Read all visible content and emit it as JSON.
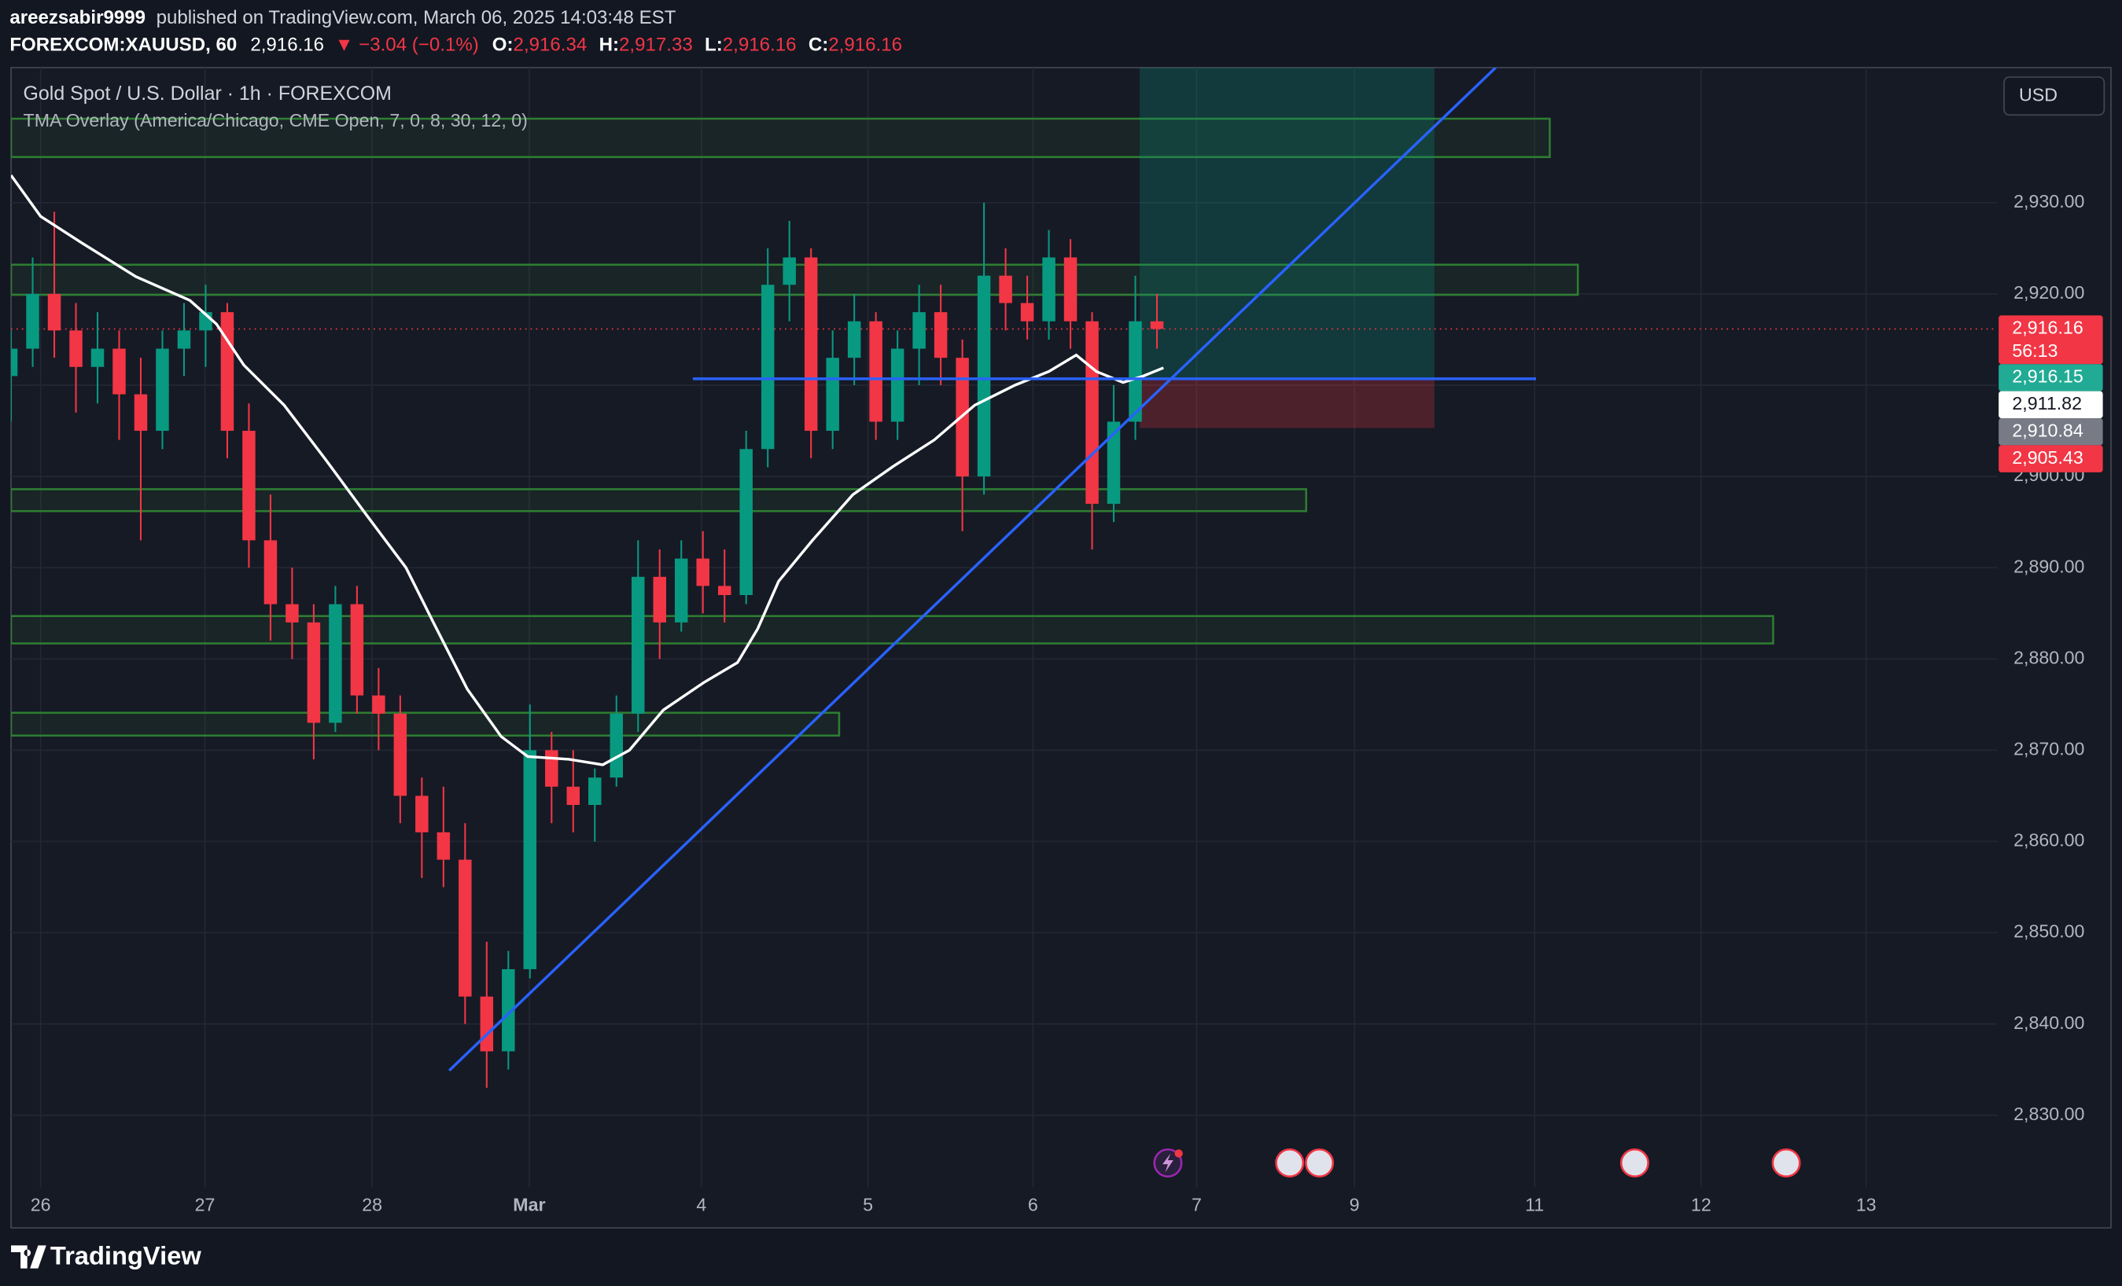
{
  "header": {
    "author": "areezsabir9999",
    "published": "published on TradingView.com, March 06, 2025 14:03:48 EST",
    "symbol": "FOREXCOM:XAUUSD, 60",
    "last": "2,916.16",
    "change": "▼ −3.04 (−0.1%)",
    "ohlc": [
      {
        "key": "O:",
        "value": "2,916.34"
      },
      {
        "key": "H:",
        "value": "2,917.33"
      },
      {
        "key": "L:",
        "value": "2,916.16"
      },
      {
        "key": "C:",
        "value": "2,916.16"
      }
    ]
  },
  "chart_data": {
    "type": "candlestick",
    "title": "Gold Spot / U.S. Dollar · 1h · FOREXCOM",
    "indicator": "TMA Overlay (America/Chicago, CME Open, 7, 0, 8, 30, 12, 0)",
    "currency": "USD",
    "up_color": "#089981",
    "down_color": "#f23645",
    "x": [
      0,
      3,
      6,
      9,
      12,
      15,
      18,
      21,
      24,
      27,
      30,
      33,
      36,
      39,
      42,
      45,
      48,
      51,
      54,
      57,
      60,
      63,
      66,
      69,
      72,
      75,
      78,
      81,
      84,
      87,
      90,
      93,
      96,
      99,
      102,
      105,
      108,
      111,
      114,
      117,
      120,
      123,
      126,
      129,
      132,
      135,
      138,
      141,
      144,
      147,
      150,
      153,
      156,
      159
    ],
    "open": [
      2911,
      2914,
      2920,
      2916,
      2912,
      2914,
      2909,
      2905,
      2914,
      2916,
      2918,
      2905,
      2893,
      2886,
      2884,
      2873,
      2886,
      2876,
      2874,
      2865,
      2861,
      2858,
      2843,
      2837,
      2846,
      2870,
      2866,
      2864,
      2867,
      2874,
      2889,
      2884,
      2891,
      2888,
      2887,
      2903,
      2921,
      2924,
      2905,
      2913,
      2917,
      2906,
      2914,
      2918,
      2913,
      2900,
      2922,
      2919,
      2917,
      2924,
      2917,
      2897,
      2906,
      2917
    ],
    "high": [
      2916,
      2924,
      2929,
      2919,
      2918,
      2916,
      2913,
      2916,
      2919,
      2921,
      2919,
      2908,
      2898,
      2890,
      2886,
      2888,
      2888,
      2879,
      2876,
      2867,
      2866,
      2862,
      2849,
      2848,
      2875,
      2872,
      2870,
      2868,
      2876,
      2893,
      2892,
      2893,
      2894,
      2892,
      2905,
      2925,
      2928,
      2925,
      2916,
      2920,
      2918,
      2916,
      2921,
      2921,
      2915,
      2930,
      2925,
      2922,
      2927,
      2926,
      2918,
      2910,
      2922,
      2920
    ],
    "low": [
      2906,
      2912,
      2913,
      2907,
      2908,
      2904,
      2893,
      2903,
      2911,
      2912,
      2902,
      2890,
      2882,
      2880,
      2869,
      2872,
      2874,
      2870,
      2862,
      2856,
      2855,
      2840,
      2833,
      2835,
      2845,
      2862,
      2861,
      2860,
      2866,
      2872,
      2880,
      2883,
      2885,
      2884,
      2886,
      2901,
      2917,
      2902,
      2903,
      2910,
      2904,
      2904,
      2910,
      2910,
      2894,
      2898,
      2916,
      2915,
      2915,
      2914,
      2892,
      2895,
      2904,
      2914
    ],
    "close": [
      2914,
      2920,
      2916,
      2912,
      2914,
      2909,
      2905,
      2914,
      2916,
      2918,
      2905,
      2893,
      2886,
      2884,
      2873,
      2886,
      2876,
      2874,
      2865,
      2861,
      2858,
      2843,
      2837,
      2846,
      2870,
      2866,
      2864,
      2867,
      2874,
      2889,
      2884,
      2891,
      2888,
      2887,
      2903,
      2921,
      2924,
      2905,
      2913,
      2917,
      2906,
      2914,
      2918,
      2913,
      2900,
      2922,
      2919,
      2917,
      2924,
      2917,
      2897,
      2906,
      2917,
      2916.16
    ],
    "xlim": [
      0,
      275.6
    ],
    "xticks": [
      {
        "value": 4.1,
        "label": "26"
      },
      {
        "value": 26.9,
        "label": "27"
      },
      {
        "value": 50.1,
        "label": "28"
      },
      {
        "value": 71.9,
        "label": "Mar"
      },
      {
        "value": 95.8,
        "label": "4"
      },
      {
        "value": 118.9,
        "label": "5"
      },
      {
        "value": 141.8,
        "label": "6"
      },
      {
        "value": 164.5,
        "label": "7"
      },
      {
        "value": 186.4,
        "label": "9"
      },
      {
        "value": 211.4,
        "label": "11"
      },
      {
        "value": 234.5,
        "label": "12"
      },
      {
        "value": 257.4,
        "label": "13"
      }
    ],
    "ylim": [
      2822.1,
      2944.8
    ],
    "yticks": [
      {
        "value": 2830,
        "label": "2,830.00"
      },
      {
        "value": 2840,
        "label": "2,840.00"
      },
      {
        "value": 2850,
        "label": "2,850.00"
      },
      {
        "value": 2860,
        "label": "2,860.00"
      },
      {
        "value": 2870,
        "label": "2,870.00"
      },
      {
        "value": 2880,
        "label": "2,880.00"
      },
      {
        "value": 2890,
        "label": "2,890.00"
      },
      {
        "value": 2900,
        "label": "2,900.00"
      },
      {
        "value": 2910,
        "label": "2,910.00"
      },
      {
        "value": 2920,
        "label": "2,920.00"
      },
      {
        "value": 2930,
        "label": "2,930.00"
      }
    ],
    "grid": true,
    "tma": {
      "color": "#ffffff",
      "x": [
        0,
        4.1,
        9.8,
        17.3,
        24.8,
        28.5,
        32.3,
        37.9,
        43.6,
        49.2,
        54.8,
        58.6,
        63.3,
        68,
        71.7,
        77.4,
        82.1,
        85.8,
        90.5,
        96.1,
        100.8,
        103.6,
        106.5,
        111.2,
        116.8,
        122.4,
        128.1,
        133.7,
        139.3,
        144,
        147.8,
        150.6,
        154.3,
        157.1,
        159.9
      ],
      "values": [
        2933,
        2928.5,
        2925.6,
        2921.9,
        2919.3,
        2916.7,
        2912.2,
        2907.8,
        2901.9,
        2895.9,
        2890,
        2884,
        2876.7,
        2871.5,
        2869.3,
        2869,
        2868.4,
        2870,
        2874.4,
        2877.4,
        2879.6,
        2883.3,
        2888.5,
        2893,
        2898,
        2901.1,
        2904,
        2907.8,
        2910,
        2911.5,
        2913.3,
        2911.5,
        2910.3,
        2911,
        2911.9
      ]
    },
    "zone_color": "#2e7d32",
    "zones": [
      {
        "x": [
          0,
          213.5
        ],
        "y": [
          2935,
          2939.2
        ]
      },
      {
        "x": [
          0,
          217.4
        ],
        "y": [
          2919.9,
          2923.2
        ]
      },
      {
        "x": [
          0,
          179.7
        ],
        "y": [
          2896.2,
          2898.6
        ]
      },
      {
        "x": [
          0,
          244.5
        ],
        "y": [
          2881.7,
          2884.7
        ]
      },
      {
        "x": [
          0,
          114.9
        ],
        "y": [
          2871.6,
          2874.1
        ]
      }
    ],
    "trendline": {
      "x": [
        60.8,
        206
      ],
      "y": [
        2834.9,
        2944.8
      ],
      "color": "#2962ff"
    },
    "level": {
      "x": [
        94.6,
        211.6
      ],
      "y": 2910.7,
      "color": "#2962ff"
    },
    "position": {
      "x": [
        156.6,
        197.5
      ],
      "entry": 2910.7,
      "target": 2944.8,
      "stop": 2905.3
    },
    "price_labels": [
      {
        "value": 2916.16,
        "label": "2,916.16",
        "countdown": "56:13",
        "color": "#f23645",
        "text_color": "#ffffff"
      },
      {
        "value": 2916.15,
        "label": "2,916.15",
        "color": "#22ab94",
        "text_color": "#ffffff"
      },
      {
        "value": 2911.82,
        "label": "2,911.82",
        "color": "#ffffff",
        "text_color": "#131722"
      },
      {
        "value": 2910.84,
        "label": "2,910.84",
        "color": "#787b86",
        "text_color": "#ffffff"
      },
      {
        "value": 2905.43,
        "label": "2,905.43",
        "color": "#f23645",
        "text_color": "#ffffff"
      }
    ]
  },
  "footer": {
    "brand": "TradingView"
  }
}
